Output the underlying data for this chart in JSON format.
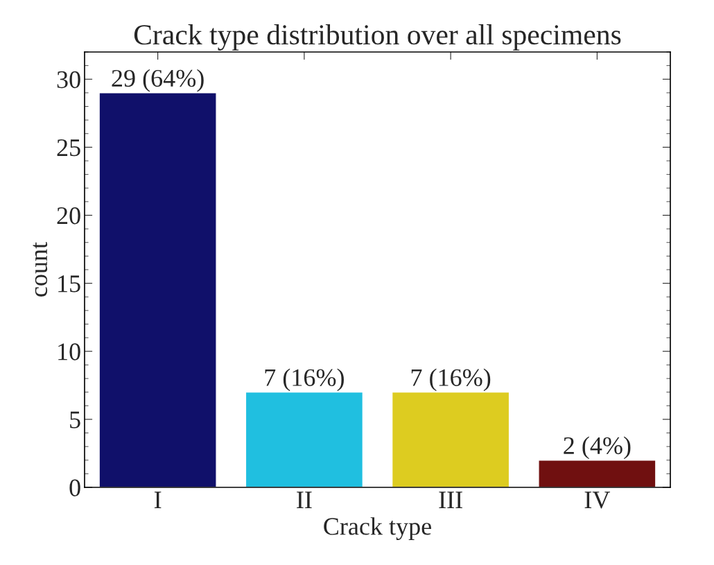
{
  "chart_data": {
    "type": "bar",
    "title": "Crack type distribution over all specimens",
    "xlabel": "Crack type",
    "ylabel": "count",
    "categories": [
      "I",
      "II",
      "III",
      "IV"
    ],
    "values": [
      29,
      7,
      7,
      2
    ],
    "colors": [
      "#10106a",
      "#20bfe0",
      "#ddcc20",
      "#701010"
    ],
    "value_labels": [
      "29 (64%)",
      "7 (16%)",
      "7 (16%)",
      "2 (4%)"
    ],
    "ylim": [
      0,
      32
    ],
    "yticks": [
      0,
      5,
      10,
      15,
      20,
      25,
      30
    ],
    "grid": false,
    "legend": false
  }
}
